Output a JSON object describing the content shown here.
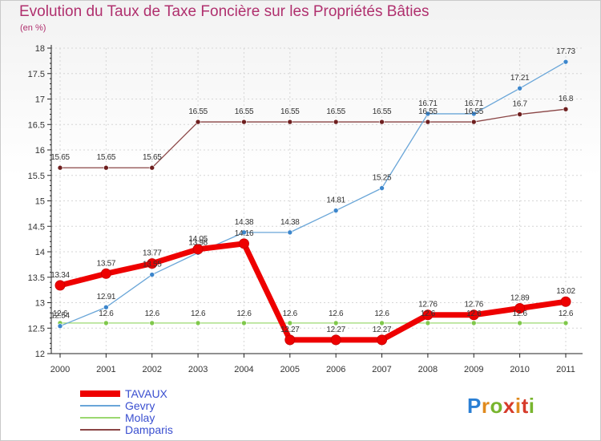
{
  "title": "Evolution du Taux de Taxe Foncière sur les Propriétés Bâties",
  "subtitle": "(en %)",
  "brand": "Proxiti",
  "chart_data": {
    "type": "line",
    "title": "Evolution du Taux de Taxe Foncière sur les Propriétés Bâties",
    "ylabel": "(en %)",
    "xlabel": "",
    "categories": [
      "2000",
      "2001",
      "2002",
      "2003",
      "2004",
      "2005",
      "2006",
      "2007",
      "2008",
      "2009",
      "2010",
      "2011"
    ],
    "ylim": [
      12,
      18
    ],
    "yticks": [
      "12",
      "12.5",
      "13",
      "13.5",
      "14",
      "14.5",
      "15",
      "15.5",
      "16",
      "16.5",
      "17",
      "17.5",
      "18"
    ],
    "grid": true,
    "legend_position": "bottom-left",
    "series": [
      {
        "name": "TAVAUX",
        "color": "#ee0000",
        "marker": "#ee0000",
        "values": [
          13.34,
          13.57,
          13.77,
          14.05,
          14.16,
          12.27,
          12.27,
          12.27,
          12.76,
          12.76,
          12.89,
          13.02
        ],
        "labels": [
          "13.34",
          "13.57",
          "13.77",
          "14.05",
          "14.16",
          "12.27",
          "12.27",
          "12.27",
          "12.76",
          "12.76",
          "12.89",
          "13.02"
        ]
      },
      {
        "name": "Gevry",
        "color": "#6aa6d8",
        "marker": "#3c86cc",
        "values": [
          12.54,
          12.91,
          13.55,
          13.98,
          14.38,
          14.38,
          14.81,
          15.25,
          16.71,
          16.71,
          17.21,
          17.73
        ],
        "labels": [
          "12.54",
          "12.91",
          "13.55",
          "13.98",
          "14.38",
          "14.38",
          "14.81",
          "15.25",
          "16.71",
          "16.71",
          "17.21",
          "17.73"
        ]
      },
      {
        "name": "Molay",
        "color": "#9bd870",
        "marker": "#7fc84a",
        "values": [
          12.6,
          12.6,
          12.6,
          12.6,
          12.6,
          12.6,
          12.6,
          12.6,
          12.6,
          12.6,
          12.6,
          12.6
        ],
        "labels": [
          "12.6",
          "12.6",
          "12.6",
          "12.6",
          "12.6",
          "12.6",
          "12.6",
          "12.6",
          "12.6",
          "12.6",
          "12.6",
          "12.6"
        ]
      },
      {
        "name": "Damparis",
        "color": "#8a4545",
        "marker": "#6e1f1f",
        "values": [
          15.65,
          15.65,
          15.65,
          16.55,
          16.55,
          16.55,
          16.55,
          16.55,
          16.55,
          16.55,
          16.7,
          16.8
        ],
        "labels": [
          "15.65",
          "15.65",
          "15.65",
          "16.55",
          "16.55",
          "16.55",
          "16.55",
          "16.55",
          "16.55",
          "16.55",
          "16.7",
          "16.8"
        ]
      }
    ]
  }
}
